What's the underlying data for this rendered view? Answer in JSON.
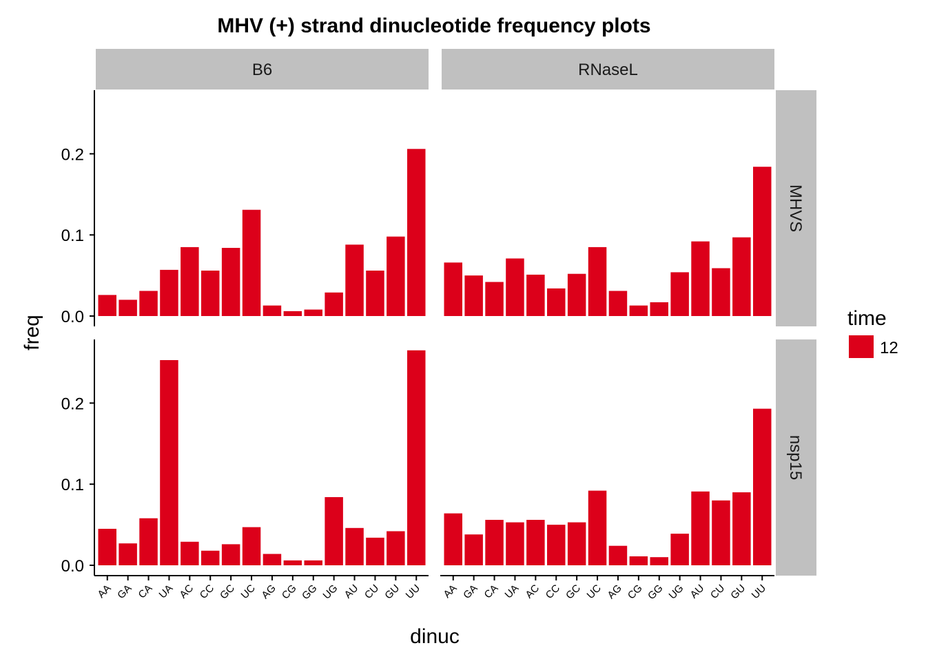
{
  "chart_data": {
    "type": "bar",
    "title": "MHV (+) strand dinucleotide frequency plots",
    "xlabel": "dinuc",
    "ylabel": "freq",
    "ylim": [
      0,
      0.28
    ],
    "y_ticks": [
      0.0,
      0.1,
      0.2
    ],
    "y_tick_labels": [
      "0.0",
      "0.1",
      "0.2"
    ],
    "categories": [
      "AA",
      "GA",
      "CA",
      "UA",
      "AC",
      "CC",
      "GC",
      "UC",
      "AG",
      "CG",
      "GG",
      "UG",
      "AU",
      "CU",
      "GU",
      "UU"
    ],
    "facet_cols": [
      "B6",
      "RNaseL"
    ],
    "facet_rows": [
      "MHVS",
      "nsp15"
    ],
    "bar_color": "#dc001a",
    "strip_color": "#c0c0c0",
    "legend": {
      "title": "time",
      "items": [
        {
          "label": "12",
          "color": "#dc001a"
        }
      ],
      "position": "right"
    },
    "grid": false,
    "panels": [
      {
        "col": "B6",
        "row": "MHVS",
        "values": [
          0.026,
          0.02,
          0.031,
          0.057,
          0.085,
          0.056,
          0.084,
          0.131,
          0.013,
          0.006,
          0.008,
          0.029,
          0.088,
          0.056,
          0.098,
          0.206
        ]
      },
      {
        "col": "RNaseL",
        "row": "MHVS",
        "values": [
          0.066,
          0.05,
          0.042,
          0.071,
          0.051,
          0.034,
          0.052,
          0.085,
          0.031,
          0.013,
          0.017,
          0.054,
          0.092,
          0.059,
          0.097,
          0.184
        ]
      },
      {
        "col": "B6",
        "row": "nsp15",
        "values": [
          0.045,
          0.027,
          0.058,
          0.253,
          0.029,
          0.018,
          0.026,
          0.047,
          0.014,
          0.006,
          0.006,
          0.084,
          0.046,
          0.034,
          0.042,
          0.265
        ]
      },
      {
        "col": "RNaseL",
        "row": "nsp15",
        "values": [
          0.064,
          0.038,
          0.056,
          0.053,
          0.056,
          0.05,
          0.053,
          0.092,
          0.024,
          0.011,
          0.01,
          0.039,
          0.091,
          0.08,
          0.09,
          0.193
        ]
      }
    ]
  }
}
